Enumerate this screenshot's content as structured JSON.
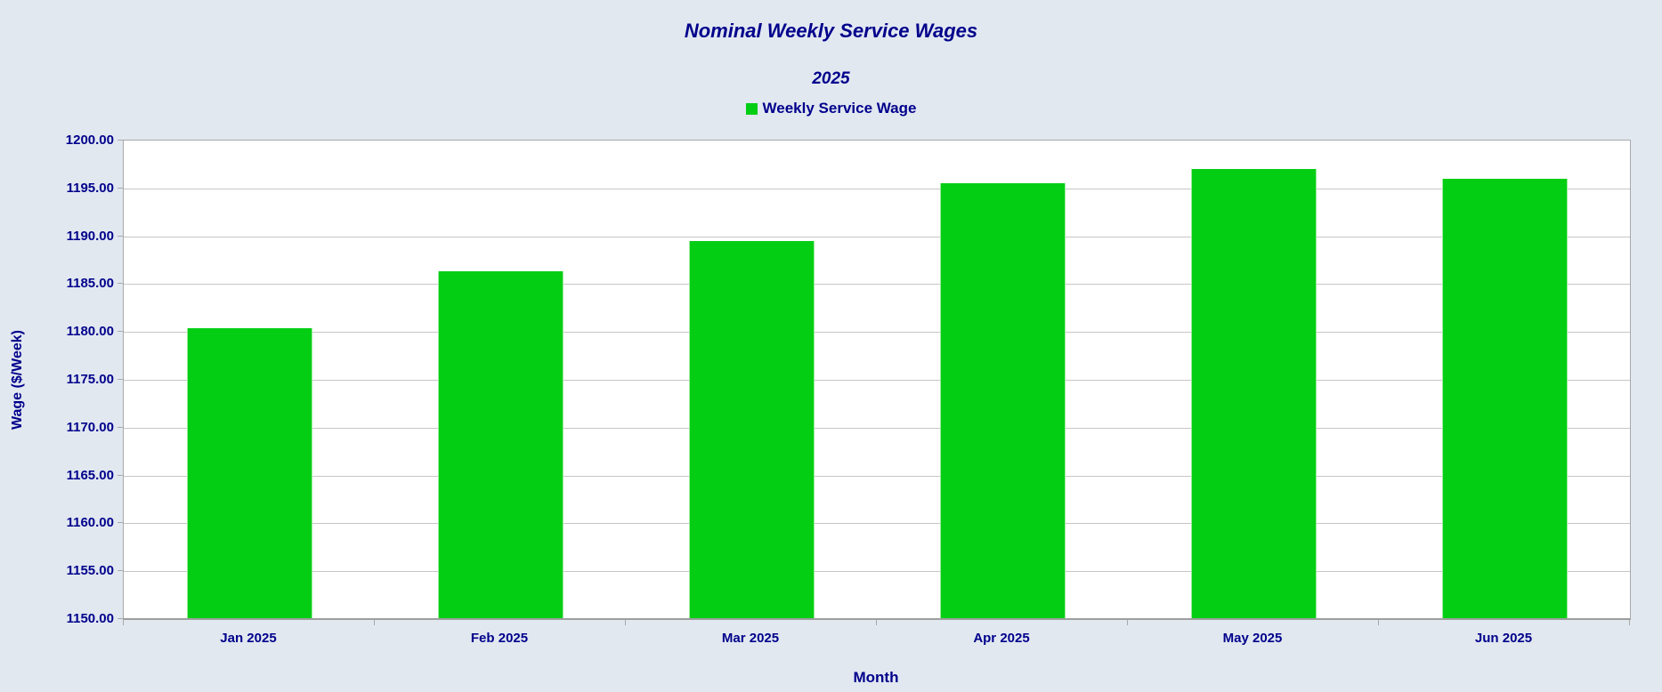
{
  "header": {
    "title": "Nominal Weekly Service Wages",
    "subtitle": "2025"
  },
  "legend": {
    "label": "Weekly Service Wage",
    "swatch_color": "#04CE14"
  },
  "colors": {
    "background": "#E1E8F0",
    "plot_background": "#FFFFFF",
    "text": "#00008B",
    "gridline": "#C6C6C6",
    "axis": "#A9A9A9",
    "bar": "#04CE14"
  },
  "chart_data": {
    "type": "bar",
    "title": "Nominal Weekly Service Wages",
    "subtitle": "2025",
    "categories": [
      "Jan 2025",
      "Feb 2025",
      "Mar 2025",
      "Apr 2025",
      "May 2025",
      "Jun 2025"
    ],
    "series": [
      {
        "name": "Weekly Service Wage",
        "color": "#04CE14",
        "values": [
          1180.4,
          1186.3,
          1189.5,
          1195.5,
          1197.0,
          1196.0
        ]
      }
    ],
    "xlabel": "Month",
    "ylabel": "Wage ($/Week)",
    "ylim": [
      1150,
      1200
    ],
    "ytick_step": 5,
    "ytick_format": "0.00",
    "grid": true,
    "legend_position": "top",
    "bar_width_fraction": 0.5
  }
}
